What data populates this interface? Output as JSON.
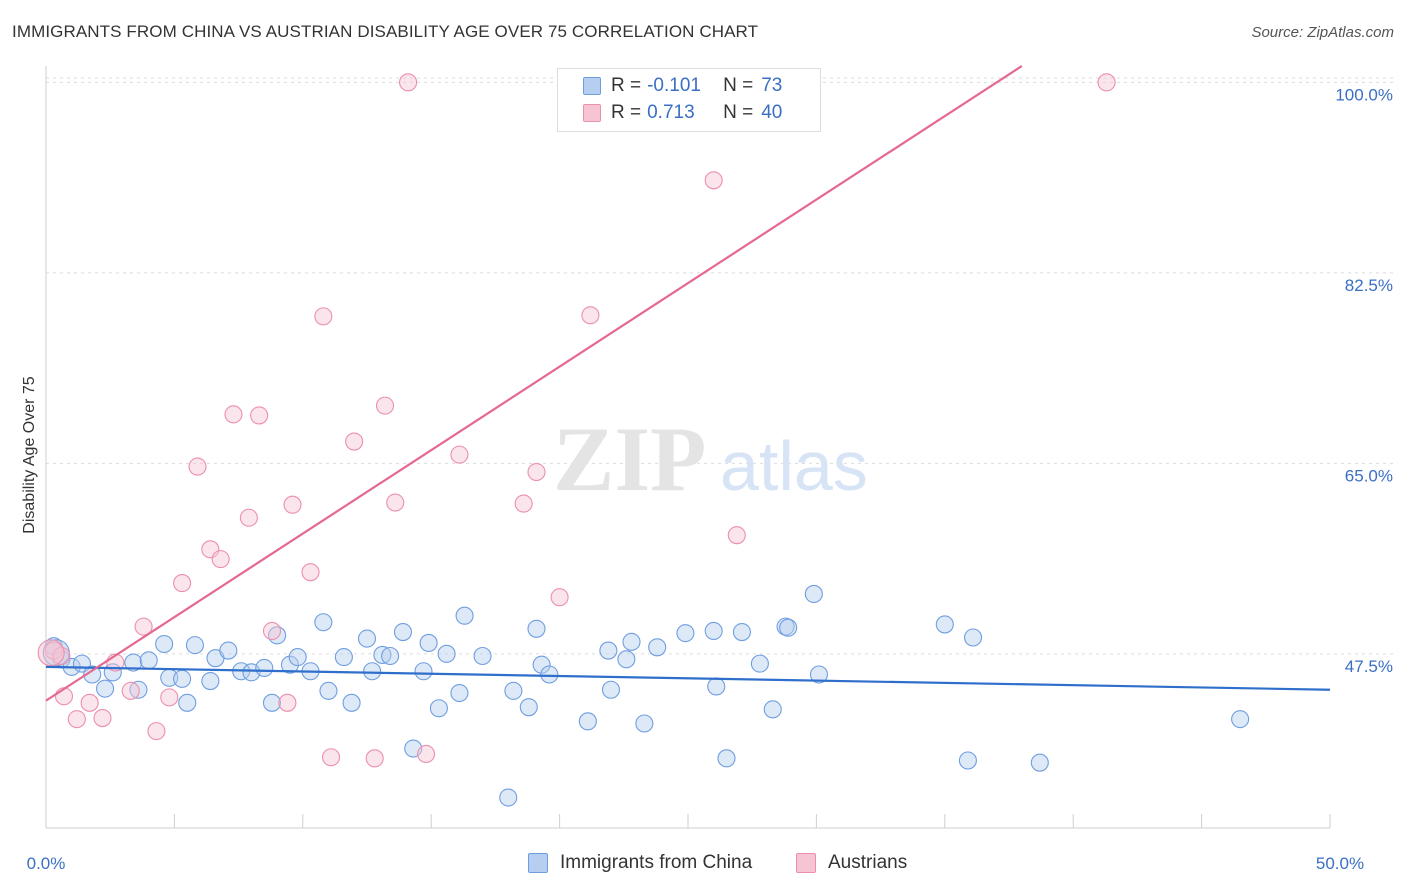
{
  "title": "IMMIGRANTS FROM CHINA VS AUSTRIAN DISABILITY AGE OVER 75 CORRELATION CHART",
  "source": "Source: ZipAtlas.com",
  "watermark": {
    "zip": "ZIP",
    "atlas": "atlas"
  },
  "legend": {
    "rows": [
      {
        "r_label": "R =",
        "r_value": "-0.101",
        "n_label": "N =",
        "n_value": "73"
      },
      {
        "r_label": "R =",
        "r_value": "0.713",
        "n_label": "N =",
        "n_value": "40"
      }
    ]
  },
  "bottom_legend": [
    "Immigrants from China",
    "Austrians"
  ],
  "colors": {
    "blue_fill": "#b6cff0",
    "blue_stroke": "#6f9ee0",
    "blue_line": "#2f6fcb",
    "pink_fill": "#f6c5d4",
    "pink_stroke": "#ec8fab",
    "pink_line": "#e5688f",
    "axis_text": "#3a6fc4"
  },
  "chart_data": {
    "type": "scatter",
    "title": "IMMIGRANTS FROM CHINA VS AUSTRIAN DISABILITY AGE OVER 75 CORRELATION CHART",
    "xlabel": "",
    "ylabel": "Disability Age Over 75",
    "xlim": [
      0,
      50
    ],
    "ylim": [
      31.5,
      101.5
    ],
    "x_tick_labels": [
      "0.0%",
      "50.0%"
    ],
    "y_ticks": [
      47.5,
      65.0,
      82.5,
      100.0
    ],
    "y_tick_labels": [
      "47.5%",
      "65.0%",
      "82.5%",
      "100.0%"
    ],
    "grid": true,
    "legend_position": "top-center",
    "series": [
      {
        "name": "Immigrants from China",
        "r": -0.101,
        "n": 73,
        "trend": {
          "x": [
            0,
            50
          ],
          "y": [
            46.3,
            44.2
          ]
        },
        "points": [
          [
            0.3,
            48.2
          ],
          [
            0.6,
            47.0
          ],
          [
            1.0,
            46.3
          ],
          [
            1.4,
            46.6
          ],
          [
            1.8,
            45.6
          ],
          [
            2.3,
            44.3
          ],
          [
            2.6,
            45.8
          ],
          [
            3.4,
            46.7
          ],
          [
            3.6,
            44.2
          ],
          [
            4.0,
            46.9
          ],
          [
            4.6,
            48.4
          ],
          [
            4.8,
            45.3
          ],
          [
            5.3,
            45.2
          ],
          [
            5.5,
            43.0
          ],
          [
            5.8,
            48.3
          ],
          [
            6.4,
            45.0
          ],
          [
            6.6,
            47.1
          ],
          [
            7.1,
            47.8
          ],
          [
            7.6,
            45.9
          ],
          [
            8.0,
            45.8
          ],
          [
            8.5,
            46.2
          ],
          [
            8.8,
            43.0
          ],
          [
            9.0,
            49.2
          ],
          [
            9.5,
            46.5
          ],
          [
            9.8,
            47.2
          ],
          [
            10.3,
            45.9
          ],
          [
            10.8,
            50.4
          ],
          [
            11.0,
            44.1
          ],
          [
            11.6,
            47.2
          ],
          [
            11.9,
            43.0
          ],
          [
            12.5,
            48.9
          ],
          [
            12.7,
            45.9
          ],
          [
            13.1,
            47.4
          ],
          [
            13.4,
            47.3
          ],
          [
            13.9,
            49.5
          ],
          [
            14.3,
            38.8
          ],
          [
            14.7,
            45.9
          ],
          [
            14.9,
            48.5
          ],
          [
            15.3,
            42.5
          ],
          [
            15.6,
            47.5
          ],
          [
            16.1,
            43.9
          ],
          [
            16.3,
            51.0
          ],
          [
            17.0,
            47.3
          ],
          [
            18.0,
            34.3
          ],
          [
            18.2,
            44.1
          ],
          [
            18.8,
            42.6
          ],
          [
            19.1,
            49.8
          ],
          [
            19.3,
            46.5
          ],
          [
            19.6,
            45.6
          ],
          [
            21.1,
            41.3
          ],
          [
            21.9,
            47.8
          ],
          [
            22.0,
            44.2
          ],
          [
            22.6,
            47.0
          ],
          [
            22.8,
            48.6
          ],
          [
            23.3,
            41.1
          ],
          [
            23.8,
            48.1
          ],
          [
            24.9,
            49.4
          ],
          [
            26.0,
            49.6
          ],
          [
            26.1,
            44.5
          ],
          [
            26.5,
            37.9
          ],
          [
            27.1,
            49.5
          ],
          [
            27.8,
            46.6
          ],
          [
            28.3,
            42.4
          ],
          [
            28.8,
            50.0
          ],
          [
            28.9,
            49.9
          ],
          [
            29.9,
            53.0
          ],
          [
            30.1,
            45.6
          ],
          [
            35.0,
            50.2
          ],
          [
            35.9,
            37.7
          ],
          [
            36.1,
            49.0
          ],
          [
            38.7,
            37.5
          ],
          [
            46.5,
            41.5
          ],
          [
            0.4,
            47.6
          ]
        ]
      },
      {
        "name": "Austrians",
        "r": 0.713,
        "n": 40,
        "trend": {
          "x": [
            0,
            38
          ],
          "y": [
            43.2,
            101.5
          ]
        },
        "points": [
          [
            0.3,
            47.8
          ],
          [
            0.6,
            47.3
          ],
          [
            0.7,
            43.6
          ],
          [
            1.2,
            41.5
          ],
          [
            1.7,
            43.0
          ],
          [
            2.2,
            41.6
          ],
          [
            2.7,
            46.7
          ],
          [
            3.3,
            44.1
          ],
          [
            3.8,
            50.0
          ],
          [
            4.3,
            40.4
          ],
          [
            4.8,
            43.5
          ],
          [
            5.3,
            54.0
          ],
          [
            5.9,
            64.7
          ],
          [
            6.4,
            57.1
          ],
          [
            6.8,
            56.2
          ],
          [
            7.3,
            69.5
          ],
          [
            7.9,
            60.0
          ],
          [
            8.3,
            69.4
          ],
          [
            8.8,
            49.6
          ],
          [
            9.4,
            43.0
          ],
          [
            9.6,
            61.2
          ],
          [
            10.3,
            55.0
          ],
          [
            10.8,
            78.5
          ],
          [
            11.1,
            38.0
          ],
          [
            12.0,
            67.0
          ],
          [
            12.8,
            37.9
          ],
          [
            13.2,
            70.3
          ],
          [
            13.6,
            61.4
          ],
          [
            14.1,
            100.0
          ],
          [
            14.8,
            38.3
          ],
          [
            16.1,
            65.8
          ],
          [
            18.6,
            61.3
          ],
          [
            19.1,
            64.2
          ],
          [
            20.0,
            52.7
          ],
          [
            21.2,
            78.6
          ],
          [
            26.0,
            91.0
          ],
          [
            26.9,
            58.4
          ],
          [
            29.8,
            100.0
          ],
          [
            41.3,
            100.0
          ],
          [
            0.2,
            47.6
          ]
        ]
      }
    ]
  }
}
